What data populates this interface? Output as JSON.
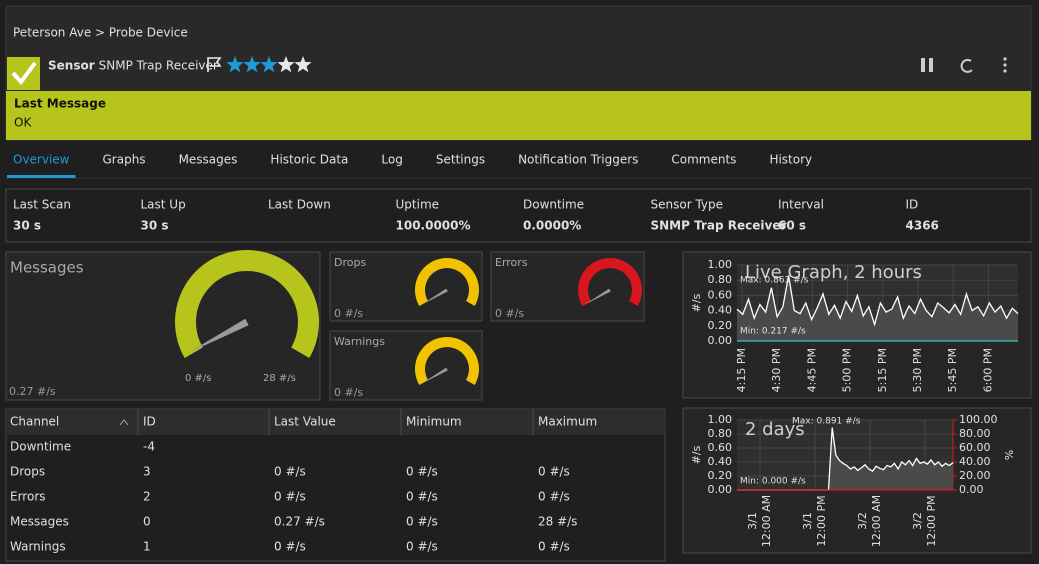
{
  "header": {
    "breadcrumb": "Peterson Ave > Probe Device",
    "sensor_label": "Sensor",
    "sensor_name": "SNMP Trap Receiver",
    "rating": 3,
    "rating_max": 5
  },
  "status": {
    "title": "Last Message",
    "text": "OK"
  },
  "tabs": {
    "items": [
      "Overview",
      "Graphs",
      "Messages",
      "Historic Data",
      "Log",
      "Settings",
      "Notification Triggers",
      "Comments",
      "History"
    ],
    "active": 0
  },
  "stats": [
    {
      "label": "Last Scan",
      "value": "30 s"
    },
    {
      "label": "Last Up",
      "value": "30 s"
    },
    {
      "label": "Last Down",
      "value": null
    },
    {
      "label": "Uptime",
      "value": "100.0000%"
    },
    {
      "label": "Downtime",
      "value": "0.0000%"
    },
    {
      "label": "Sensor Type",
      "value": "SNMP Trap Receiver"
    },
    {
      "label": "Interval",
      "value": "60 s"
    },
    {
      "label": "ID",
      "value": "4366"
    }
  ],
  "gauges": [
    {
      "title": "Messages",
      "value": 0.27,
      "value_label": "0.27 #/s",
      "min": 0,
      "min_label": "0 #/s",
      "max": 28,
      "max_label": "28 #/s",
      "color": "#b6c41c"
    },
    {
      "title": "Drops",
      "value": 0,
      "value_label": "0 #/s",
      "color": "#f2c200"
    },
    {
      "title": "Errors",
      "value": 0,
      "value_label": "0 #/s",
      "color": "#d7161e"
    },
    {
      "title": "Warnings",
      "value": 0,
      "value_label": "0 #/s",
      "color": "#f2c200"
    }
  ],
  "table": {
    "headers": [
      "Channel",
      "ID",
      "Last Value",
      "Minimum",
      "Maximum"
    ],
    "rows": [
      [
        "Downtime",
        "-4",
        null,
        null,
        null
      ],
      [
        "Drops",
        "3",
        "0 #/s",
        "0 #/s",
        "0 #/s"
      ],
      [
        "Errors",
        "2",
        "0 #/s",
        "0 #/s",
        "0 #/s"
      ],
      [
        "Messages",
        "0",
        "0.27 #/s",
        "0 #/s",
        "28 #/s"
      ],
      [
        "Warnings",
        "1",
        "0 #/s",
        "0 #/s",
        "0 #/s"
      ]
    ]
  },
  "graphs": [
    {
      "title": "Live Graph, 2 hours",
      "y_label": "#/s",
      "ylim": [
        0,
        1
      ],
      "yticks": [
        {
          "value": 0,
          "label": "0.00"
        },
        {
          "value": 0.2,
          "label": "0.20"
        },
        {
          "value": 0.4,
          "label": "0.40"
        },
        {
          "value": 0.6,
          "label": "0.60"
        },
        {
          "value": 0.8,
          "label": "0.80"
        },
        {
          "value": 1,
          "label": "1.00"
        }
      ],
      "xticks": [
        [
          "4:15 PM"
        ],
        [
          "4:30 PM"
        ],
        [
          "4:45 PM"
        ],
        [
          "5:00 PM"
        ],
        [
          "5:15 PM"
        ],
        [
          "5:30 PM"
        ],
        [
          "5:45 PM"
        ],
        [
          "6:00 PM"
        ]
      ],
      "max_label": "Max: 0.863 #/s",
      "min_label": "Min: 0.217 #/s",
      "series": [
        {
          "color": "#ffffff",
          "fill": "#4a4a4a",
          "values": [
            0.42,
            0.35,
            0.55,
            0.3,
            0.48,
            0.38,
            0.7,
            0.32,
            0.45,
            0.863,
            0.4,
            0.36,
            0.5,
            0.28,
            0.44,
            0.62,
            0.35,
            0.47,
            0.3,
            0.52,
            0.39,
            0.6,
            0.33,
            0.45,
            0.217,
            0.5,
            0.38,
            0.42,
            0.58,
            0.3,
            0.46,
            0.36,
            0.55,
            0.4,
            0.32,
            0.5,
            0.44,
            0.37,
            0.48,
            0.35,
            0.62,
            0.4,
            0.45,
            0.33,
            0.5,
            0.38,
            0.46,
            0.3,
            0.43,
            0.36
          ]
        },
        {
          "color": "#3cc6c6",
          "values": [
            0,
            0
          ]
        }
      ]
    },
    {
      "title": "2 days",
      "y_label": "#/s",
      "y2_label": "%",
      "ylim": [
        0,
        1
      ],
      "y2lim": [
        0,
        100
      ],
      "yticks": [
        {
          "value": 0,
          "label": "0.00"
        },
        {
          "value": 0.2,
          "label": "0.20"
        },
        {
          "value": 0.4,
          "label": "0.40"
        },
        {
          "value": 0.6,
          "label": "0.60"
        },
        {
          "value": 0.8,
          "label": "0.80"
        },
        {
          "value": 1,
          "label": "1.00"
        }
      ],
      "y2ticks": [
        {
          "value": 0,
          "label": "0.00"
        },
        {
          "value": 20,
          "label": "20.00"
        },
        {
          "value": 40,
          "label": "40.00"
        },
        {
          "value": 60,
          "label": "60.00"
        },
        {
          "value": 80,
          "label": "80.00"
        },
        {
          "value": 100,
          "label": "100.00"
        }
      ],
      "xticks": [
        [
          "3/1",
          "12:00 AM"
        ],
        [
          "3/1",
          "12:00 PM"
        ],
        [
          "3/2",
          "12:00 AM"
        ],
        [
          "3/2",
          "12:00 PM"
        ]
      ],
      "max_label": "Max: 0.891 #/s",
      "min_label": "Min: 0.000 #/s",
      "series": [
        {
          "color": "#ffffff",
          "fill": "#4a4a4a",
          "values": [
            0,
            0,
            0,
            0,
            0,
            0,
            0,
            0,
            0,
            0,
            0,
            0,
            0,
            0,
            0,
            0,
            0,
            0,
            0,
            0,
            0,
            0,
            0,
            0,
            0,
            0,
            0.891,
            0.5,
            0.42,
            0.38,
            0.35,
            0.3,
            0.33,
            0.28,
            0.32,
            0.36,
            0.3,
            0.27,
            0.34,
            0.31,
            0.29,
            0.35,
            0.33,
            0.38,
            0.3,
            0.4,
            0.36,
            0.42,
            0.35,
            0.45,
            0.38,
            0.4,
            0.37,
            0.43,
            0.36,
            0.4,
            0.34,
            0.38,
            0.35,
            0.39
          ]
        },
        {
          "color": "#e0141c",
          "axis": "y2",
          "values": [
            0,
            0
          ]
        }
      ]
    }
  ]
}
